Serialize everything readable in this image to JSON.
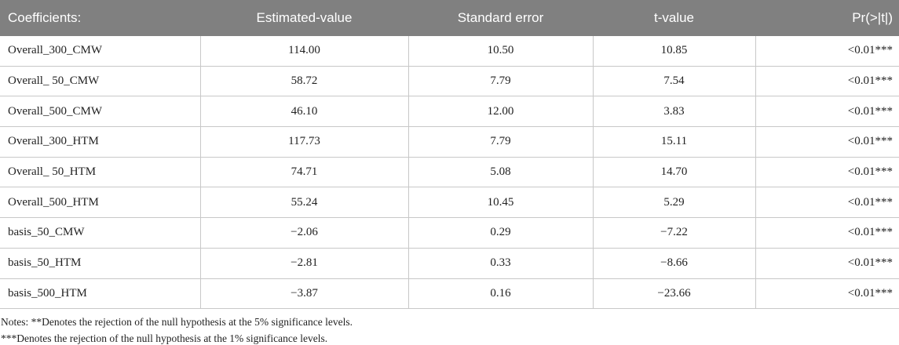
{
  "table": {
    "header": [
      "Coefficients:",
      "Estimated-value",
      "Standard error",
      "t-value",
      "Pr(>|t|)"
    ],
    "rows": [
      [
        "Overall_300_CMW",
        "114.00",
        "10.50",
        "10.85",
        "<0.01***"
      ],
      [
        "Overall_ 50_CMW",
        "58.72",
        "7.79",
        "7.54",
        "<0.01***"
      ],
      [
        "Overall_500_CMW",
        "46.10",
        "12.00",
        "3.83",
        "<0.01***"
      ],
      [
        "Overall_300_HTM",
        "117.73",
        "7.79",
        "15.11",
        "<0.01***"
      ],
      [
        "Overall_ 50_HTM",
        "74.71",
        "5.08",
        "14.70",
        "<0.01***"
      ],
      [
        "Overall_500_HTM",
        "55.24",
        "10.45",
        "5.29",
        "<0.01***"
      ],
      [
        "basis_50_CMW",
        "−2.06",
        "0.29",
        "−7.22",
        "<0.01***"
      ],
      [
        "basis_50_HTM",
        "−2.81",
        "0.33",
        "−8.66",
        "<0.01***"
      ],
      [
        "basis_500_HTM",
        "−3.87",
        "0.16",
        "−23.66",
        "<0.01***"
      ]
    ]
  },
  "notes": [
    "Notes: **Denotes the rejection of the null hypothesis at the 5% significance levels.",
    "***Denotes the rejection of the null hypothesis at the 1% significance levels."
  ]
}
